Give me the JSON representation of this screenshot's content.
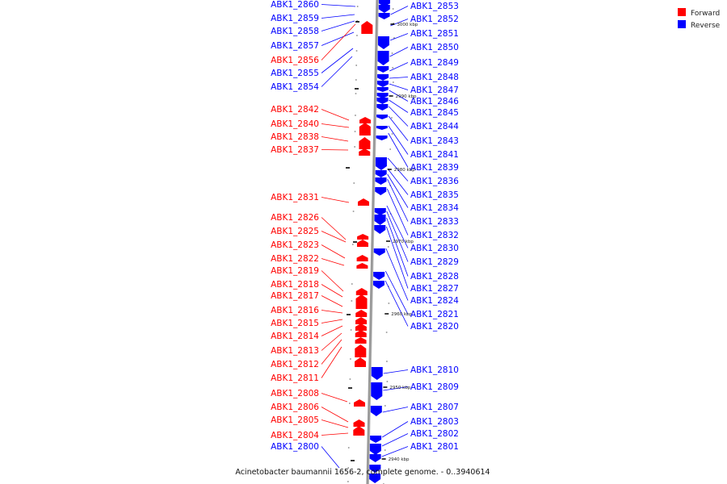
{
  "caption": "Acinetobacter baumannii 1656-2, complete genome. - 0..3940614",
  "legend": [
    {
      "label": "Forward",
      "color": "#ff0000"
    },
    {
      "label": "Reverse",
      "color": "#0000ff"
    }
  ],
  "colors": {
    "forward": "#ff0000",
    "reverse": "#0000ff",
    "backbone": "#999999"
  },
  "ticks": [
    "3000 kbp",
    "2990 kbp",
    "2980 kbp",
    "2970 kbp",
    "2960 kbp",
    "2950 kbp",
    "2940 kbp"
  ],
  "left_genes": [
    {
      "name": "ABK1_2860",
      "strand": "reverse"
    },
    {
      "name": "ABK1_2859",
      "strand": "reverse"
    },
    {
      "name": "ABK1_2858",
      "strand": "reverse"
    },
    {
      "name": "ABK1_2857",
      "strand": "reverse"
    },
    {
      "name": "ABK1_2856",
      "strand": "forward"
    },
    {
      "name": "ABK1_2855",
      "strand": "reverse"
    },
    {
      "name": "ABK1_2854",
      "strand": "reverse"
    },
    {
      "name": "ABK1_2842",
      "strand": "forward"
    },
    {
      "name": "ABK1_2840",
      "strand": "forward"
    },
    {
      "name": "ABK1_2838",
      "strand": "forward"
    },
    {
      "name": "ABK1_2837",
      "strand": "forward"
    },
    {
      "name": "ABK1_2831",
      "strand": "forward"
    },
    {
      "name": "ABK1_2826",
      "strand": "forward"
    },
    {
      "name": "ABK1_2825",
      "strand": "forward"
    },
    {
      "name": "ABK1_2823",
      "strand": "forward"
    },
    {
      "name": "ABK1_2822",
      "strand": "forward"
    },
    {
      "name": "ABK1_2819",
      "strand": "forward"
    },
    {
      "name": "ABK1_2818",
      "strand": "forward"
    },
    {
      "name": "ABK1_2817",
      "strand": "forward"
    },
    {
      "name": "ABK1_2816",
      "strand": "forward"
    },
    {
      "name": "ABK1_2815",
      "strand": "forward"
    },
    {
      "name": "ABK1_2814",
      "strand": "forward"
    },
    {
      "name": "ABK1_2813",
      "strand": "forward"
    },
    {
      "name": "ABK1_2812",
      "strand": "forward"
    },
    {
      "name": "ABK1_2811",
      "strand": "forward"
    },
    {
      "name": "ABK1_2808",
      "strand": "forward"
    },
    {
      "name": "ABK1_2806",
      "strand": "forward"
    },
    {
      "name": "ABK1_2805",
      "strand": "forward"
    },
    {
      "name": "ABK1_2804",
      "strand": "forward"
    },
    {
      "name": "ABK1_2800",
      "strand": "reverse"
    }
  ],
  "right_genes": [
    {
      "name": "ABK1_2853",
      "strand": "reverse"
    },
    {
      "name": "ABK1_2852",
      "strand": "reverse"
    },
    {
      "name": "ABK1_2851",
      "strand": "reverse"
    },
    {
      "name": "ABK1_2850",
      "strand": "reverse"
    },
    {
      "name": "ABK1_2849",
      "strand": "reverse"
    },
    {
      "name": "ABK1_2848",
      "strand": "reverse"
    },
    {
      "name": "ABK1_2847",
      "strand": "reverse"
    },
    {
      "name": "ABK1_2846",
      "strand": "reverse"
    },
    {
      "name": "ABK1_2845",
      "strand": "reverse"
    },
    {
      "name": "ABK1_2844",
      "strand": "reverse"
    },
    {
      "name": "ABK1_2843",
      "strand": "reverse"
    },
    {
      "name": "ABK1_2841",
      "strand": "reverse"
    },
    {
      "name": "ABK1_2839",
      "strand": "reverse"
    },
    {
      "name": "ABK1_2836",
      "strand": "reverse"
    },
    {
      "name": "ABK1_2835",
      "strand": "reverse"
    },
    {
      "name": "ABK1_2834",
      "strand": "reverse"
    },
    {
      "name": "ABK1_2833",
      "strand": "reverse"
    },
    {
      "name": "ABK1_2832",
      "strand": "reverse"
    },
    {
      "name": "ABK1_2830",
      "strand": "reverse"
    },
    {
      "name": "ABK1_2829",
      "strand": "reverse"
    },
    {
      "name": "ABK1_2828",
      "strand": "reverse"
    },
    {
      "name": "ABK1_2827",
      "strand": "reverse"
    },
    {
      "name": "ABK1_2824",
      "strand": "reverse"
    },
    {
      "name": "ABK1_2821",
      "strand": "reverse"
    },
    {
      "name": "ABK1_2820",
      "strand": "reverse"
    },
    {
      "name": "ABK1_2810",
      "strand": "reverse"
    },
    {
      "name": "ABK1_2809",
      "strand": "reverse"
    },
    {
      "name": "ABK1_2807",
      "strand": "reverse"
    },
    {
      "name": "ABK1_2803",
      "strand": "reverse"
    },
    {
      "name": "ABK1_2802",
      "strand": "reverse"
    },
    {
      "name": "ABK1_2801",
      "strand": "reverse"
    }
  ]
}
